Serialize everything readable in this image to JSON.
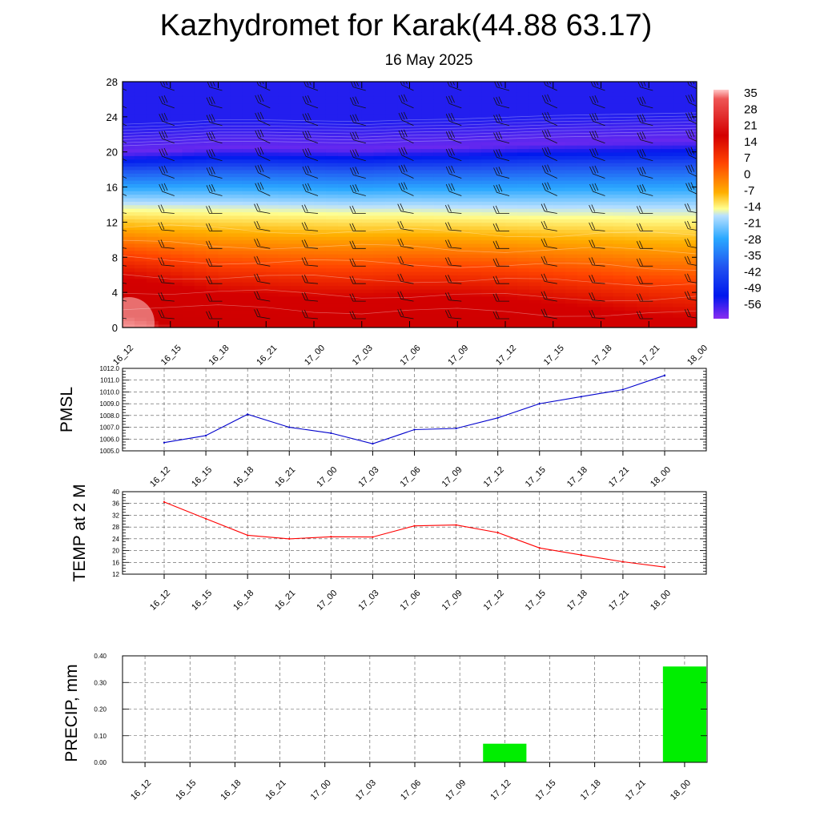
{
  "header": {
    "title": "Kazhydromet for Karak(44.88 63.17)",
    "subtitle": "16 May 2025"
  },
  "chart_data": [
    {
      "type": "heatmap",
      "title": "",
      "x_ticks": [
        "16_12",
        "16_15",
        "16_18",
        "16_21",
        "17_00",
        "17_03",
        "17_06",
        "17_09",
        "17_12",
        "17_15",
        "17_18",
        "17_21",
        "18_00"
      ],
      "y_ticks": [
        "0",
        "4",
        "8",
        "12",
        "16",
        "20",
        "24",
        "28"
      ],
      "ylim": [
        0,
        28
      ],
      "colorbar": {
        "labels": [
          "35",
          "28",
          "21",
          "14",
          "7",
          "0",
          "-7",
          "-14",
          "-21",
          "-28",
          "-35",
          "-42",
          "-49",
          "-56"
        ],
        "range": [
          -60,
          38
        ]
      },
      "freezing_level_by_time": [
        13.4,
        13.3,
        13.2,
        13.1,
        13.0,
        12.9,
        12.9,
        12.8,
        12.7,
        12.6,
        12.6,
        12.5,
        12.5
      ],
      "cold_core_by_time": [
        20.0,
        20.2,
        20.5,
        20.5,
        20.4,
        20.3,
        20.5,
        20.6,
        20.8,
        21.0,
        21.1,
        21.2,
        21.3
      ],
      "surface_temp_by_time": [
        35,
        31,
        27,
        26,
        25,
        25,
        26,
        26,
        25,
        23,
        21,
        19,
        18
      ],
      "wind_barbs": true,
      "legend": "right"
    },
    {
      "type": "line",
      "ylabel": "PMSL",
      "categories": [
        "16_12",
        "16_15",
        "16_18",
        "16_21",
        "17_00",
        "17_03",
        "17_06",
        "17_09",
        "17_12",
        "17_15",
        "17_18",
        "17_21",
        "18_00"
      ],
      "series": [
        {
          "values": [
            1005.7,
            1006.3,
            1008.1,
            1007.0,
            1006.5,
            1005.6,
            1006.8,
            1006.9,
            1007.8,
            1009.0,
            1009.6,
            1010.2,
            1011.4
          ],
          "color": "#0000cc"
        }
      ],
      "ylim": [
        1005.0,
        1012.0
      ],
      "y_ticks": [
        "1005.0",
        "1006.0",
        "1007.0",
        "1008.0",
        "1009.0",
        "1010.0",
        "1011.0",
        "1012.0"
      ],
      "grid": true
    },
    {
      "type": "line",
      "ylabel": "TEMP at 2 M",
      "categories": [
        "16_12",
        "16_15",
        "16_18",
        "16_21",
        "17_00",
        "17_03",
        "17_06",
        "17_09",
        "17_12",
        "17_15",
        "17_18",
        "17_21",
        "18_00"
      ],
      "series": [
        {
          "values": [
            36.5,
            30.8,
            25.2,
            24.0,
            24.7,
            24.6,
            28.4,
            28.7,
            26.1,
            20.9,
            18.5,
            16.2,
            14.4
          ],
          "color": "#ff0000"
        }
      ],
      "ylim": [
        12,
        40
      ],
      "y_ticks": [
        "12",
        "16",
        "20",
        "24",
        "28",
        "32",
        "36",
        "40"
      ],
      "grid": true
    },
    {
      "type": "bar",
      "ylabel": "PRECIP, mm",
      "categories": [
        "16_12",
        "16_15",
        "16_18",
        "16_21",
        "17_00",
        "17_03",
        "17_06",
        "17_09",
        "17_12",
        "17_15",
        "17_18",
        "17_21",
        "18_00"
      ],
      "values": [
        0,
        0,
        0,
        0,
        0,
        0,
        0,
        0,
        0.07,
        0,
        0,
        0,
        0.36
      ],
      "ylim": [
        0,
        0.4
      ],
      "y_ticks": [
        "0.00",
        "0.10",
        "0.20",
        "0.30",
        "0.40"
      ],
      "bar_color": "#00ee00",
      "grid": true
    }
  ]
}
